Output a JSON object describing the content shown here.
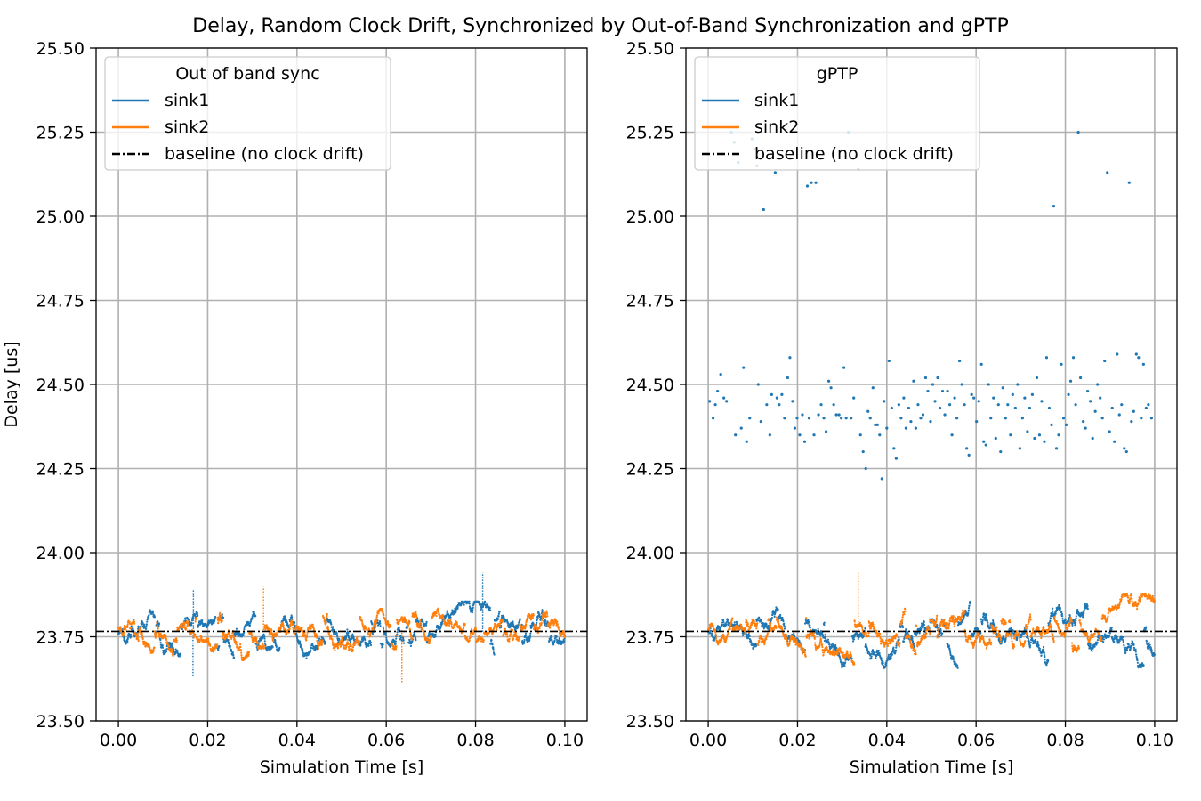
{
  "figure": {
    "title": "Delay, Random Clock Drift, Synchronized by Out-of-Band Synchronization and gPTP"
  },
  "colors": {
    "sink1": "#1f77b4",
    "sink2": "#ff7f0e",
    "baseline": "#000000",
    "grid": "#b0b0b0"
  },
  "chart_data": [
    {
      "type": "scatter",
      "title": "",
      "legend_title": "Out of band sync",
      "legend_placement": "upper-left",
      "xlabel": "Simulation Time [s]",
      "ylabel": "Delay [us]",
      "xlim": [
        -0.005,
        0.105
      ],
      "ylim": [
        23.5,
        25.5
      ],
      "grid": true,
      "xticks": [
        0.0,
        0.02,
        0.04,
        0.06,
        0.08,
        0.1
      ],
      "xtick_labels": [
        "0.00",
        "0.02",
        "0.04",
        "0.06",
        "0.08",
        "0.10"
      ],
      "yticks": [
        23.5,
        23.75,
        24.0,
        24.25,
        24.5,
        24.75,
        25.0,
        25.25,
        25.5
      ],
      "ytick_labels": [
        "23.50",
        "23.75",
        "24.00",
        "24.25",
        "24.50",
        "24.75",
        "25.00",
        "25.25",
        "25.50"
      ],
      "baseline": {
        "name": "baseline (no clock drift)",
        "y": 23.766,
        "style": "dash-dot"
      },
      "series": [
        {
          "name": "sink1",
          "color": "#1f77b4",
          "x_range": [
            0.0,
            0.1
          ],
          "points_per_sweep": 2000,
          "segments": [
            {
              "x0": 0.0,
              "x1": 0.1,
              "center": 23.765,
              "band": 0.05,
              "min": 23.62,
              "max": 23.94
            }
          ],
          "extreme_points": [
            [
              0.0816,
              23.94
            ],
            [
              0.0167,
              23.63
            ],
            [
              0.0168,
              23.89
            ]
          ]
        },
        {
          "name": "sink2",
          "color": "#ff7f0e",
          "x_range": [
            0.0,
            0.1
          ],
          "points_per_sweep": 2000,
          "segments": [
            {
              "x0": 0.0,
              "x1": 0.1,
              "center": 23.77,
              "band": 0.05,
              "min": 23.61,
              "max": 23.9
            }
          ],
          "extreme_points": [
            [
              0.0325,
              23.9
            ],
            [
              0.0635,
              23.61
            ]
          ]
        }
      ]
    },
    {
      "type": "scatter",
      "title": "",
      "legend_title": "gPTP",
      "legend_placement": "upper-left",
      "xlabel": "Simulation Time [s]",
      "ylabel": "",
      "xlim": [
        -0.005,
        0.105
      ],
      "ylim": [
        23.5,
        25.5
      ],
      "grid": true,
      "xticks": [
        0.0,
        0.02,
        0.04,
        0.06,
        0.08,
        0.1
      ],
      "xtick_labels": [
        "0.00",
        "0.02",
        "0.04",
        "0.06",
        "0.08",
        "0.10"
      ],
      "yticks": [
        23.5,
        23.75,
        24.0,
        24.25,
        24.5,
        24.75,
        25.0,
        25.25,
        25.5
      ],
      "ytick_labels": [
        "23.50",
        "23.75",
        "24.00",
        "24.25",
        "24.50",
        "24.75",
        "25.00",
        "25.25",
        "25.50"
      ],
      "baseline": {
        "name": "baseline (no clock drift)",
        "y": 23.766,
        "style": "dash-dot"
      },
      "series": [
        {
          "name": "sink1",
          "color": "#1f77b4",
          "x_range": [
            0.0,
            0.1
          ],
          "points_per_sweep": 2000,
          "segments": [
            {
              "x0": 0.0,
              "x1": 0.1,
              "center": 23.765,
              "band": 0.06,
              "min": 23.56,
              "max": 23.95
            }
          ],
          "outliers": [
            [
              0.0003,
              24.45
            ],
            [
              0.0011,
              24.4
            ],
            [
              0.0016,
              24.44
            ],
            [
              0.0021,
              24.48
            ],
            [
              0.0028,
              24.53
            ],
            [
              0.0035,
              24.46
            ],
            [
              0.0041,
              24.45
            ],
            [
              0.0052,
              25.25
            ],
            [
              0.0058,
              25.22
            ],
            [
              0.0061,
              24.35
            ],
            [
              0.0067,
              25.16
            ],
            [
              0.0074,
              24.37
            ],
            [
              0.0079,
              24.55
            ],
            [
              0.0086,
              24.33
            ],
            [
              0.0093,
              24.4
            ],
            [
              0.0098,
              25.23
            ],
            [
              0.0104,
              25.2
            ],
            [
              0.0109,
              25.15
            ],
            [
              0.0112,
              24.5
            ],
            [
              0.0118,
              24.39
            ],
            [
              0.0124,
              25.02
            ],
            [
              0.0131,
              24.44
            ],
            [
              0.0138,
              24.35
            ],
            [
              0.0142,
              24.47
            ],
            [
              0.015,
              25.13
            ],
            [
              0.0154,
              24.46
            ],
            [
              0.0159,
              24.44
            ],
            [
              0.0165,
              24.47
            ],
            [
              0.0171,
              24.4
            ],
            [
              0.0178,
              24.52
            ],
            [
              0.0183,
              24.58
            ],
            [
              0.0189,
              24.45
            ],
            [
              0.0194,
              24.37
            ],
            [
              0.0199,
              24.4
            ],
            [
              0.0205,
              24.35
            ],
            [
              0.0211,
              24.41
            ],
            [
              0.0216,
              24.33
            ],
            [
              0.0222,
              25.09
            ],
            [
              0.0226,
              24.4
            ],
            [
              0.0231,
              25.1
            ],
            [
              0.0237,
              24.35
            ],
            [
              0.0241,
              25.1
            ],
            [
              0.0247,
              24.41
            ],
            [
              0.0253,
              24.44
            ],
            [
              0.0259,
              24.4
            ],
            [
              0.0264,
              24.36
            ],
            [
              0.027,
              24.51
            ],
            [
              0.0275,
              24.49
            ],
            [
              0.0281,
              24.44
            ],
            [
              0.0287,
              24.41
            ],
            [
              0.0293,
              24.41
            ],
            [
              0.0298,
              24.4
            ],
            [
              0.0304,
              24.55
            ],
            [
              0.0309,
              24.4
            ],
            [
              0.0314,
              25.25
            ],
            [
              0.032,
              24.4
            ],
            [
              0.0326,
              24.46
            ],
            [
              0.0331,
              25.18
            ],
            [
              0.0336,
              25.14
            ],
            [
              0.0341,
              24.35
            ],
            [
              0.0347,
              24.3
            ],
            [
              0.0353,
              24.25
            ],
            [
              0.0358,
              24.42
            ],
            [
              0.0363,
              24.4
            ],
            [
              0.0369,
              24.49
            ],
            [
              0.0374,
              24.38
            ],
            [
              0.0379,
              24.38
            ],
            [
              0.0384,
              24.35
            ],
            [
              0.0389,
              24.22
            ],
            [
              0.0394,
              24.45
            ],
            [
              0.04,
              24.37
            ],
            [
              0.0405,
              24.57
            ],
            [
              0.0411,
              24.43
            ],
            [
              0.0416,
              24.31
            ],
            [
              0.0421,
              24.28
            ],
            [
              0.0427,
              24.44
            ],
            [
              0.0432,
              24.4
            ],
            [
              0.0438,
              24.46
            ],
            [
              0.0443,
              24.37
            ],
            [
              0.0449,
              24.43
            ],
            [
              0.0454,
              24.39
            ],
            [
              0.046,
              24.51
            ],
            [
              0.0465,
              24.37
            ],
            [
              0.047,
              24.44
            ],
            [
              0.0476,
              24.4
            ],
            [
              0.0481,
              24.41
            ],
            [
              0.0487,
              24.52
            ],
            [
              0.0492,
              24.48
            ],
            [
              0.0498,
              24.39
            ],
            [
              0.0503,
              24.5
            ],
            [
              0.0508,
              24.45
            ],
            [
              0.0514,
              24.52
            ],
            [
              0.0519,
              24.43
            ],
            [
              0.0525,
              24.48
            ],
            [
              0.053,
              24.41
            ],
            [
              0.0536,
              24.48
            ],
            [
              0.0541,
              24.44
            ],
            [
              0.0546,
              24.35
            ],
            [
              0.0552,
              24.46
            ],
            [
              0.0557,
              24.4
            ],
            [
              0.0563,
              24.57
            ],
            [
              0.0568,
              24.5
            ],
            [
              0.0574,
              24.44
            ],
            [
              0.0579,
              24.31
            ],
            [
              0.0584,
              24.29
            ],
            [
              0.059,
              24.47
            ],
            [
              0.0595,
              24.46
            ],
            [
              0.0601,
              24.39
            ],
            [
              0.0606,
              24.45
            ],
            [
              0.0612,
              24.56
            ],
            [
              0.0617,
              24.33
            ],
            [
              0.0622,
              24.32
            ],
            [
              0.0628,
              24.5
            ],
            [
              0.0633,
              24.4
            ],
            [
              0.0639,
              24.46
            ],
            [
              0.0644,
              24.34
            ],
            [
              0.065,
              24.44
            ],
            [
              0.0655,
              24.3
            ],
            [
              0.066,
              24.49
            ],
            [
              0.0666,
              24.4
            ],
            [
              0.0671,
              24.44
            ],
            [
              0.0677,
              24.35
            ],
            [
              0.0682,
              24.47
            ],
            [
              0.0688,
              24.43
            ],
            [
              0.0693,
              24.5
            ],
            [
              0.0698,
              24.31
            ],
            [
              0.0704,
              24.4
            ],
            [
              0.0709,
              24.46
            ],
            [
              0.0715,
              24.36
            ],
            [
              0.072,
              24.43
            ],
            [
              0.0726,
              24.47
            ],
            [
              0.0731,
              24.34
            ],
            [
              0.0736,
              24.52
            ],
            [
              0.0742,
              24.35
            ],
            [
              0.0747,
              24.45
            ],
            [
              0.0753,
              24.33
            ],
            [
              0.0758,
              24.58
            ],
            [
              0.0764,
              24.43
            ],
            [
              0.0769,
              24.38
            ],
            [
              0.0774,
              25.03
            ],
            [
              0.078,
              24.31
            ],
            [
              0.0785,
              24.35
            ],
            [
              0.0791,
              24.56
            ],
            [
              0.0796,
              24.4
            ],
            [
              0.0802,
              24.38
            ],
            [
              0.0807,
              24.47
            ],
            [
              0.0812,
              24.51
            ],
            [
              0.0818,
              24.58
            ],
            [
              0.0823,
              24.44
            ],
            [
              0.0829,
              25.25
            ],
            [
              0.0834,
              24.52
            ],
            [
              0.084,
              24.39
            ],
            [
              0.0845,
              24.37
            ],
            [
              0.085,
              24.48
            ],
            [
              0.0856,
              24.45
            ],
            [
              0.0861,
              24.34
            ],
            [
              0.0867,
              24.42
            ],
            [
              0.0872,
              24.5
            ],
            [
              0.0878,
              24.46
            ],
            [
              0.0883,
              24.4
            ],
            [
              0.0888,
              24.57
            ],
            [
              0.0894,
              25.13
            ],
            [
              0.0899,
              24.36
            ],
            [
              0.0905,
              24.43
            ],
            [
              0.091,
              24.33
            ],
            [
              0.0916,
              24.59
            ],
            [
              0.0921,
              24.41
            ],
            [
              0.0926,
              24.44
            ],
            [
              0.0932,
              24.31
            ],
            [
              0.0937,
              24.3
            ],
            [
              0.0943,
              25.1
            ],
            [
              0.0948,
              24.39
            ],
            [
              0.0953,
              24.42
            ],
            [
              0.0959,
              24.59
            ],
            [
              0.0964,
              24.58
            ],
            [
              0.097,
              24.4
            ],
            [
              0.0975,
              24.56
            ],
            [
              0.0981,
              24.43
            ],
            [
              0.0986,
              24.44
            ],
            [
              0.0993,
              24.4
            ]
          ]
        },
        {
          "name": "sink2",
          "color": "#ff7f0e",
          "x_range": [
            0.0,
            0.1
          ],
          "points_per_sweep": 2000,
          "segments": [
            {
              "x0": 0.0,
              "x1": 0.1,
              "center": 23.77,
              "band": 0.06,
              "min": 23.61,
              "max": 23.94
            }
          ],
          "extreme_points": [
            [
              0.0336,
              23.94
            ]
          ]
        }
      ]
    }
  ]
}
